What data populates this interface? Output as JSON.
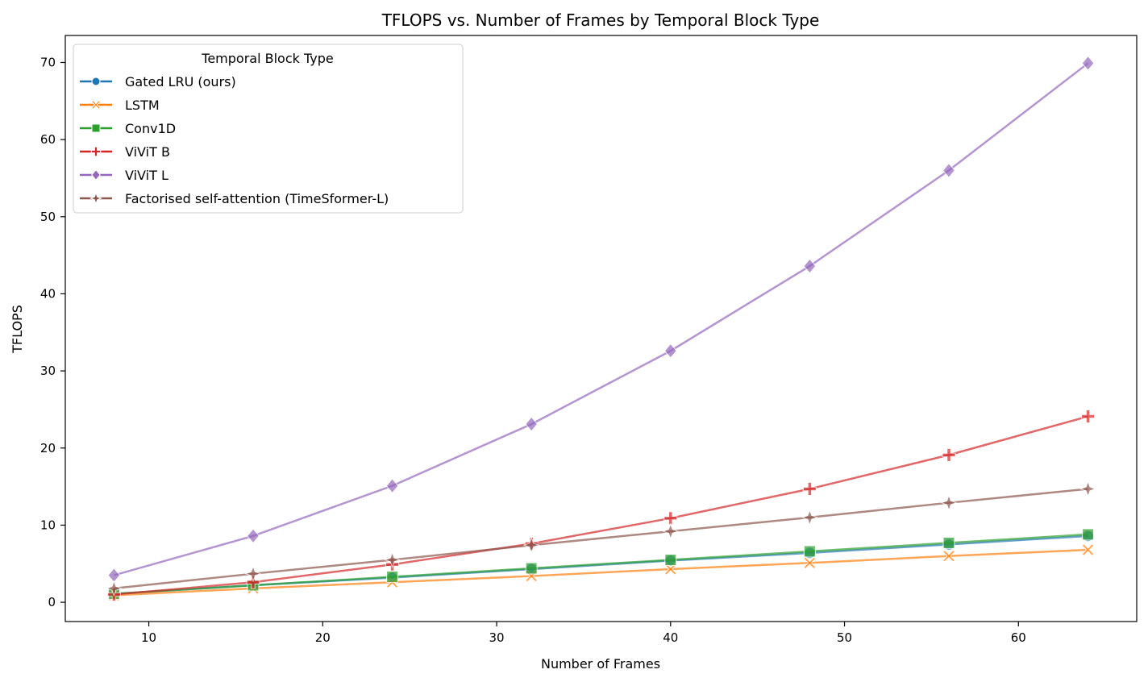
{
  "chart_data": {
    "type": "line",
    "title": "TFLOPS vs. Number of Frames by Temporal Block Type",
    "xlabel": "Number of Frames",
    "ylabel": "TFLOPS",
    "xlim": [
      5.2,
      66.8
    ],
    "ylim": [
      -2.5,
      73.5
    ],
    "xticks": [
      10,
      20,
      30,
      40,
      50,
      60
    ],
    "yticks": [
      0,
      10,
      20,
      30,
      40,
      50,
      60,
      70
    ],
    "grid": false,
    "legend": {
      "title": "Temporal Block Type",
      "placement": "upper-left"
    },
    "x": [
      8,
      16,
      24,
      32,
      40,
      48,
      56,
      64
    ],
    "series": [
      {
        "name": "Gated LRU (ours)",
        "color": "#1f77b4",
        "marker": "circle",
        "values": [
          1.1,
          2.2,
          3.2,
          4.3,
          5.4,
          6.4,
          7.5,
          8.6
        ]
      },
      {
        "name": "LSTM",
        "color": "#ff7f0e",
        "marker": "x",
        "values": [
          0.9,
          1.8,
          2.6,
          3.4,
          4.3,
          5.1,
          6.0,
          6.8
        ]
      },
      {
        "name": "Conv1D",
        "color": "#2ca02c",
        "marker": "square",
        "values": [
          1.1,
          2.2,
          3.3,
          4.4,
          5.5,
          6.6,
          7.7,
          8.8
        ]
      },
      {
        "name": "ViViT B",
        "color": "#d62728",
        "marker": "plus",
        "values": [
          1.0,
          2.6,
          4.9,
          7.6,
          10.9,
          14.7,
          19.1,
          24.1
        ]
      },
      {
        "name": "ViViT L",
        "color": "#9467bd",
        "marker": "diamond",
        "values": [
          3.5,
          8.6,
          15.1,
          23.1,
          32.6,
          43.6,
          56.0,
          69.9
        ]
      },
      {
        "name": "Factorised self-attention (TimeSformer-L)",
        "color": "#8c564b",
        "marker": "star4",
        "values": [
          1.8,
          3.7,
          5.5,
          7.4,
          9.2,
          11.0,
          12.9,
          14.7
        ]
      }
    ]
  }
}
